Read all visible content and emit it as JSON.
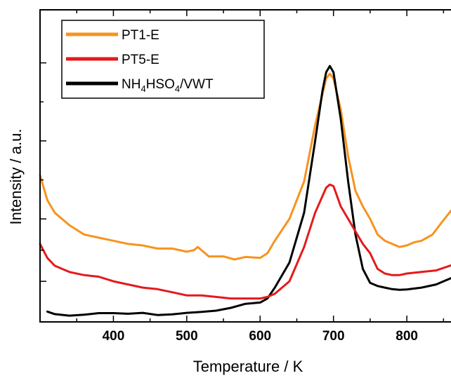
{
  "chart_data": {
    "type": "line",
    "xlabel": "Temperature / K",
    "ylabel": "Intensity / a.u.",
    "xlim": [
      300,
      865
    ],
    "ylim": [
      0,
      100
    ],
    "x_ticks": [
      400,
      500,
      600,
      700,
      800
    ],
    "y_ticks": [
      13,
      33,
      58,
      83
    ],
    "show_y_tick_labels": false,
    "grid": false,
    "legend_position": "top-left",
    "series": [
      {
        "name": "PT1-E",
        "legend_parts": [
          {
            "t": "PT1-E"
          }
        ],
        "color": "#f7931e",
        "points": [
          [
            300,
            47
          ],
          [
            310,
            39
          ],
          [
            320,
            35
          ],
          [
            340,
            31
          ],
          [
            360,
            28
          ],
          [
            380,
            27
          ],
          [
            400,
            26
          ],
          [
            420,
            25
          ],
          [
            440,
            24.5
          ],
          [
            460,
            23.5
          ],
          [
            480,
            23.5
          ],
          [
            500,
            22.5
          ],
          [
            510,
            23
          ],
          [
            515,
            24
          ],
          [
            520,
            23
          ],
          [
            530,
            21
          ],
          [
            550,
            21
          ],
          [
            565,
            20
          ],
          [
            580,
            20.8
          ],
          [
            600,
            20.5
          ],
          [
            610,
            22
          ],
          [
            620,
            26
          ],
          [
            640,
            33
          ],
          [
            660,
            45
          ],
          [
            675,
            63
          ],
          [
            690,
            78
          ],
          [
            695,
            79.5
          ],
          [
            700,
            78
          ],
          [
            710,
            68
          ],
          [
            720,
            53
          ],
          [
            730,
            42
          ],
          [
            740,
            37
          ],
          [
            750,
            33
          ],
          [
            760,
            28
          ],
          [
            770,
            26
          ],
          [
            780,
            25
          ],
          [
            790,
            24
          ],
          [
            800,
            24.5
          ],
          [
            810,
            25.5
          ],
          [
            820,
            26
          ],
          [
            835,
            28
          ],
          [
            848,
            32
          ],
          [
            858,
            35
          ],
          [
            865,
            37
          ]
        ]
      },
      {
        "name": "NH4HSO4/VWT",
        "legend_parts": [
          {
            "t": "NH"
          },
          {
            "t": "4",
            "sub": true
          },
          {
            "t": "HSO"
          },
          {
            "t": "4",
            "sub": true
          },
          {
            "t": "/VWT"
          }
        ],
        "color": "#000000",
        "points": [
          [
            310,
            3.3
          ],
          [
            320,
            2.5
          ],
          [
            340,
            2
          ],
          [
            360,
            2.3
          ],
          [
            380,
            2.8
          ],
          [
            400,
            2.8
          ],
          [
            420,
            2.6
          ],
          [
            440,
            2.9
          ],
          [
            460,
            2.2
          ],
          [
            480,
            2.4
          ],
          [
            500,
            2.9
          ],
          [
            520,
            3.2
          ],
          [
            540,
            3.6
          ],
          [
            560,
            4.5
          ],
          [
            580,
            5.8
          ],
          [
            600,
            6.2
          ],
          [
            610,
            7.5
          ],
          [
            620,
            11
          ],
          [
            640,
            19
          ],
          [
            660,
            35
          ],
          [
            675,
            58
          ],
          [
            685,
            74
          ],
          [
            690,
            80
          ],
          [
            695,
            82
          ],
          [
            700,
            80
          ],
          [
            710,
            65
          ],
          [
            720,
            45
          ],
          [
            730,
            28
          ],
          [
            740,
            17
          ],
          [
            750,
            12.5
          ],
          [
            760,
            11.5
          ],
          [
            770,
            11
          ],
          [
            780,
            10.5
          ],
          [
            790,
            10.3
          ],
          [
            800,
            10.4
          ],
          [
            820,
            11
          ],
          [
            840,
            12
          ],
          [
            865,
            14.5
          ]
        ]
      },
      {
        "name": "PT5-E",
        "legend_parts": [
          {
            "t": "PT5-E"
          }
        ],
        "color": "#e31a1c",
        "points": [
          [
            300,
            25
          ],
          [
            310,
            20.5
          ],
          [
            320,
            18
          ],
          [
            340,
            16
          ],
          [
            360,
            15
          ],
          [
            380,
            14.5
          ],
          [
            400,
            13
          ],
          [
            420,
            12
          ],
          [
            440,
            11
          ],
          [
            460,
            10.5
          ],
          [
            480,
            9.5
          ],
          [
            500,
            8.5
          ],
          [
            520,
            8.5
          ],
          [
            540,
            8
          ],
          [
            560,
            7.5
          ],
          [
            580,
            7.5
          ],
          [
            600,
            7.5
          ],
          [
            610,
            8
          ],
          [
            620,
            9
          ],
          [
            640,
            13
          ],
          [
            660,
            24
          ],
          [
            675,
            35
          ],
          [
            690,
            43
          ],
          [
            695,
            44
          ],
          [
            700,
            43.5
          ],
          [
            710,
            37
          ],
          [
            720,
            33
          ],
          [
            730,
            29
          ],
          [
            740,
            25
          ],
          [
            750,
            22
          ],
          [
            760,
            17
          ],
          [
            770,
            15.5
          ],
          [
            780,
            15
          ],
          [
            790,
            15
          ],
          [
            800,
            15.5
          ],
          [
            820,
            16
          ],
          [
            840,
            16.5
          ],
          [
            865,
            18.5
          ]
        ]
      }
    ]
  }
}
